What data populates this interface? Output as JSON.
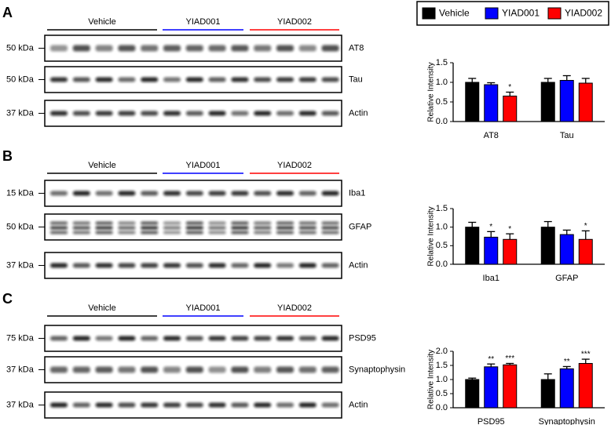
{
  "panels": [
    {
      "label": "A",
      "groups": [
        "Vehicle",
        "YIAD001",
        "YIAD002"
      ],
      "blots": [
        {
          "weight": "50 kDa",
          "protein": "AT8"
        },
        {
          "weight": "50 kDa",
          "protein": "Tau"
        },
        {
          "weight": "37 kDa",
          "protein": "Actin"
        }
      ]
    },
    {
      "label": "B",
      "groups": [
        "Vehicle",
        "YIAD001",
        "YIAD002"
      ],
      "blots": [
        {
          "weight": "15 kDa",
          "protein": "Iba1"
        },
        {
          "weight": "50 kDa",
          "protein": "GFAP"
        },
        {
          "weight": "37 kDa",
          "protein": "Actin"
        }
      ]
    },
    {
      "label": "C",
      "groups": [
        "Vehicle",
        "YIAD001",
        "YIAD002"
      ],
      "blots": [
        {
          "weight": "75 kDa",
          "protein": "PSD95"
        },
        {
          "weight": "37 kDa",
          "protein": "Synaptophysin"
        },
        {
          "weight": "37 kDa",
          "protein": "Actin"
        }
      ]
    }
  ],
  "chart_data": [
    {
      "type": "bar",
      "ylabel": "Relative Intensity",
      "categories": [
        "AT8",
        "Tau"
      ],
      "series": [
        {
          "name": "Vehicle",
          "color": "#000000",
          "values": [
            1.0,
            1.0
          ],
          "errors": [
            0.1,
            0.1
          ]
        },
        {
          "name": "YIAD001",
          "color": "#0000ff",
          "values": [
            0.94,
            1.05
          ],
          "errors": [
            0.05,
            0.12
          ]
        },
        {
          "name": "YIAD002",
          "color": "#ff0000",
          "values": [
            0.65,
            0.98
          ],
          "errors": [
            0.1,
            0.12
          ],
          "significance": [
            "*",
            null
          ]
        }
      ],
      "ylim": [
        0,
        1.5
      ],
      "yticks": [
        {
          "value": 0,
          "label": "0.0"
        },
        {
          "value": 0.5,
          "label": "0.5"
        },
        {
          "value": 1,
          "label": "1.0"
        },
        {
          "value": 1.5,
          "label": "1.5"
        }
      ]
    },
    {
      "type": "bar",
      "ylabel": "Relative Intensity",
      "categories": [
        "Iba1",
        "GFAP"
      ],
      "series": [
        {
          "name": "Vehicle",
          "color": "#000000",
          "values": [
            1.0,
            1.0
          ],
          "errors": [
            0.13,
            0.15
          ]
        },
        {
          "name": "YIAD001",
          "color": "#0000ff",
          "values": [
            0.73,
            0.8
          ],
          "errors": [
            0.15,
            0.12
          ],
          "significance": [
            "*",
            null
          ]
        },
        {
          "name": "YIAD002",
          "color": "#ff0000",
          "values": [
            0.67,
            0.67
          ],
          "errors": [
            0.15,
            0.23
          ],
          "significance": [
            "*",
            "*"
          ]
        }
      ],
      "ylim": [
        0,
        1.5
      ],
      "yticks": [
        {
          "value": 0,
          "label": "0.0"
        },
        {
          "value": 0.5,
          "label": "0.5"
        },
        {
          "value": 1,
          "label": "1.0"
        },
        {
          "value": 1.5,
          "label": "1.5"
        }
      ]
    },
    {
      "type": "bar",
      "ylabel": "Relative Intensity",
      "categories": [
        "PSD95",
        "Synaptophysin"
      ],
      "series": [
        {
          "name": "Vehicle",
          "color": "#000000",
          "values": [
            1.0,
            1.0
          ],
          "errors": [
            0.05,
            0.2
          ]
        },
        {
          "name": "YIAD001",
          "color": "#0000ff",
          "values": [
            1.45,
            1.38
          ],
          "errors": [
            0.1,
            0.08
          ],
          "significance": [
            "**",
            "**"
          ]
        },
        {
          "name": "YIAD002",
          "color": "#ff0000",
          "values": [
            1.52,
            1.57
          ],
          "errors": [
            0.05,
            0.15
          ],
          "significance": [
            "***",
            "***"
          ]
        }
      ],
      "ylim": [
        0,
        2
      ],
      "yticks": [
        {
          "value": 0,
          "label": "0.0"
        },
        {
          "value": 0.5,
          "label": "0.5"
        },
        {
          "value": 1,
          "label": "1.0"
        },
        {
          "value": 1.5,
          "label": "1.5"
        },
        {
          "value": 2,
          "label": "2.0"
        }
      ]
    }
  ]
}
